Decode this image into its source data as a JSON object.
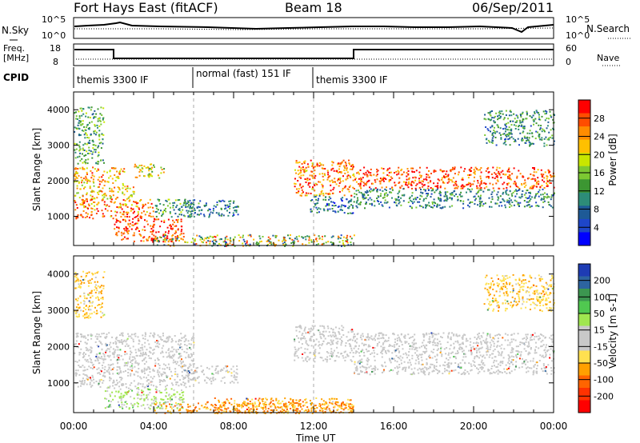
{
  "header": {
    "station": "Fort Hays East (fitACF)",
    "beam": "Beam 18",
    "date": "06/Sep/2011"
  },
  "panels": {
    "nsky": {
      "left_label": "N.Sky",
      "left_ticks": [
        "10^5",
        "10^0"
      ],
      "right_ticks": [
        "10^5",
        "10^0"
      ],
      "right_label": "N.Search"
    },
    "freq": {
      "left_label_1": "Freq.",
      "left_label_2": "[MHz]",
      "left_ticks": [
        "18",
        "8"
      ],
      "right_ticks": [
        "60",
        "0"
      ],
      "right_label": "Nave"
    },
    "cpid": {
      "label": "CPID",
      "segments": [
        {
          "label": "themis 3300 IF",
          "start_hour": 0,
          "end_hour": 6
        },
        {
          "label": "normal (fast) 151 IF",
          "start_hour": 6,
          "end_hour": 12
        },
        {
          "label": "themis 3300 IF",
          "start_hour": 12,
          "end_hour": 24
        }
      ]
    }
  },
  "colorbars": {
    "power": {
      "label": "Power [dB]",
      "ticks": [
        "28",
        "24",
        "20",
        "16",
        "12",
        "8",
        "4"
      ],
      "colors": [
        "#ff0000",
        "#ff4d00",
        "#ff8c00",
        "#ffc000",
        "#c8e600",
        "#7cc832",
        "#3c9632",
        "#2d8c78",
        "#1e5a96",
        "#1e46c8",
        "#0000ff"
      ]
    },
    "velocity": {
      "label": "Velocity [m s-1]",
      "ticks": [
        "200",
        "100",
        "50",
        "15",
        "-15",
        "-50",
        "-100",
        "-200"
      ],
      "colors": [
        "#1e3cb4",
        "#2d64a0",
        "#3c9650",
        "#50c850",
        "#a0e650",
        "#c8c8c8",
        "#c8c8c8",
        "#ffe050",
        "#ffa000",
        "#ff6400",
        "#ff3200",
        "#ff0000"
      ]
    }
  },
  "chart_data": [
    {
      "type": "heatmap",
      "title": "",
      "ylabel": "Slant Range [km]",
      "xlabel": "Time UT",
      "quantity": "Power",
      "units": "dB",
      "xlim": [
        0,
        24
      ],
      "ylim": [
        180,
        4500
      ],
      "x_ticks": [
        "00:00",
        "04:00",
        "08:00",
        "12:00",
        "16:00",
        "20:00",
        "00:00"
      ],
      "y_ticks": [
        1000,
        2000,
        3000,
        4000
      ],
      "color_range": [
        0,
        30
      ],
      "scatter_regions": [
        {
          "t0": 0.0,
          "t1": 1.5,
          "r0": 2500,
          "r1": 4100,
          "value": 12
        },
        {
          "t0": 0.0,
          "t1": 2.5,
          "r0": 1900,
          "r1": 2400,
          "value": 22
        },
        {
          "t0": 0.0,
          "t1": 3.0,
          "r0": 1500,
          "r1": 1900,
          "value": 20
        },
        {
          "t0": 0.0,
          "t1": 4.0,
          "r0": 950,
          "r1": 1500,
          "value": 24
        },
        {
          "t0": 2.0,
          "t1": 5.5,
          "r0": 300,
          "r1": 950,
          "value": 26
        },
        {
          "t0": 3.0,
          "t1": 4.5,
          "r0": 2100,
          "r1": 2500,
          "value": 18
        },
        {
          "t0": 4.0,
          "t1": 6.0,
          "r0": 1000,
          "r1": 1500,
          "value": 12
        },
        {
          "t0": 5.5,
          "t1": 8.2,
          "r0": 1000,
          "r1": 1500,
          "value": 8
        },
        {
          "t0": 11.0,
          "t1": 14.0,
          "r0": 1600,
          "r1": 2600,
          "value": 24
        },
        {
          "t0": 11.8,
          "t1": 14.0,
          "r0": 1100,
          "r1": 1600,
          "value": 8
        },
        {
          "t0": 14.0,
          "t1": 24.0,
          "r0": 1800,
          "r1": 2400,
          "value": 26
        },
        {
          "t0": 14.0,
          "t1": 24.0,
          "r0": 1250,
          "r1": 1800,
          "value": 10
        },
        {
          "t0": 20.5,
          "t1": 24.0,
          "r0": 3000,
          "r1": 4000,
          "value": 10
        }
      ]
    },
    {
      "type": "heatmap",
      "title": "",
      "ylabel": "Slant Range [km]",
      "xlabel": "Time UT",
      "quantity": "Velocity",
      "units": "m s-1",
      "xlim": [
        0,
        24
      ],
      "ylim": [
        180,
        4500
      ],
      "x_ticks": [
        "00:00",
        "04:00",
        "08:00",
        "12:00",
        "16:00",
        "20:00",
        "00:00"
      ],
      "y_ticks": [
        1000,
        2000,
        3000,
        4000
      ],
      "color_range": [
        -200,
        200
      ],
      "scatter_regions": [
        {
          "t0": 0.0,
          "t1": 1.5,
          "r0": 2800,
          "r1": 4100,
          "value": -60
        },
        {
          "t0": 0.0,
          "t1": 6.0,
          "r0": 900,
          "r1": 2400,
          "value": 0
        },
        {
          "t0": 1.5,
          "t1": 5.5,
          "r0": 300,
          "r1": 900,
          "value": 40
        },
        {
          "t0": 5.5,
          "t1": 8.2,
          "r0": 1000,
          "r1": 1500,
          "value": 0
        },
        {
          "t0": 7.0,
          "t1": 14.0,
          "r0": 180,
          "r1": 600,
          "value": -80
        },
        {
          "t0": 11.0,
          "t1": 14.0,
          "r0": 1600,
          "r1": 2600,
          "value": 0
        },
        {
          "t0": 14.0,
          "t1": 24.0,
          "r0": 1250,
          "r1": 2400,
          "value": 0
        },
        {
          "t0": 20.5,
          "t1": 24.0,
          "r0": 3000,
          "r1": 4000,
          "value": -60
        }
      ]
    }
  ]
}
